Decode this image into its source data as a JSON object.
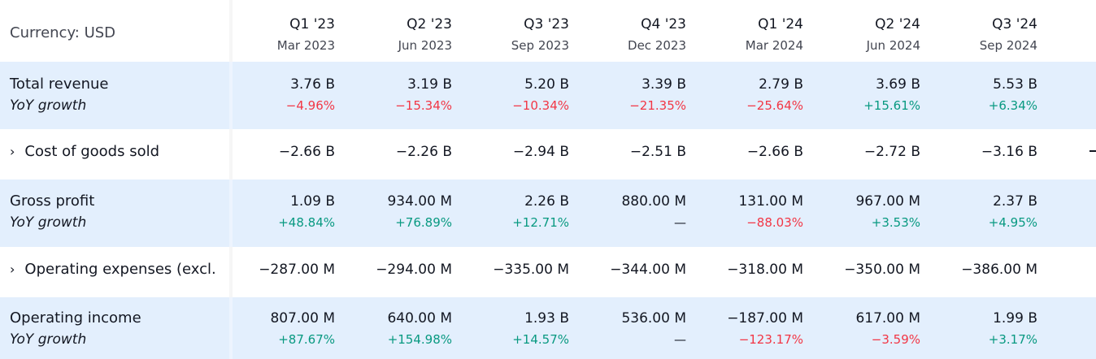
{
  "header": {
    "currency_label": "Currency: USD",
    "periods": [
      {
        "quarter": "Q1 '23",
        "date": "Mar 2023"
      },
      {
        "quarter": "Q2 '23",
        "date": "Jun 2023"
      },
      {
        "quarter": "Q3 '23",
        "date": "Sep 2023"
      },
      {
        "quarter": "Q4 '23",
        "date": "Dec 2023"
      },
      {
        "quarter": "Q1 '24",
        "date": "Mar 2024"
      },
      {
        "quarter": "Q2 '24",
        "date": "Jun 2024"
      },
      {
        "quarter": "Q3 '24",
        "date": "Sep 2024"
      }
    ]
  },
  "rows": {
    "total_revenue": {
      "label": "Total revenue",
      "sub_label": "YoY growth",
      "values": [
        "3.76 B",
        "3.19 B",
        "5.20 B",
        "3.39 B",
        "2.79 B",
        "3.69 B",
        "5.53 B"
      ],
      "growth": [
        "−4.96%",
        "−15.34%",
        "−10.34%",
        "−21.35%",
        "−25.64%",
        "+15.61%",
        "+6.34%"
      ]
    },
    "cost_of_goods_sold": {
      "expand_glyph": "›",
      "label": "Cost of goods sold",
      "values": [
        "−2.66 B",
        "−2.26 B",
        "−2.94 B",
        "−2.51 B",
        "−2.66 B",
        "−2.72 B",
        "−3.16 B"
      ]
    },
    "gross_profit": {
      "label": "Gross profit",
      "sub_label": "YoY growth",
      "values": [
        "1.09 B",
        "934.00 M",
        "2.26 B",
        "880.00 M",
        "131.00 M",
        "967.00 M",
        "2.37 B"
      ],
      "growth": [
        "+48.84%",
        "+76.89%",
        "+12.71%",
        "—",
        "−88.03%",
        "+3.53%",
        "+4.95%"
      ]
    },
    "operating_expenses": {
      "expand_glyph": "›",
      "label": "Operating expenses (excl.",
      "values": [
        "−287.00 M",
        "−294.00 M",
        "−335.00 M",
        "−344.00 M",
        "−318.00 M",
        "−350.00 M",
        "−386.00 M"
      ]
    },
    "operating_income": {
      "label": "Operating income",
      "sub_label": "YoY growth",
      "values": [
        "807.00 M",
        "640.00 M",
        "1.93 B",
        "536.00 M",
        "−187.00 M",
        "617.00 M",
        "1.99 B"
      ],
      "growth": [
        "+87.67%",
        "+154.98%",
        "+14.57%",
        "—",
        "−123.17%",
        "−3.59%",
        "+3.17%"
      ]
    }
  },
  "colors": {
    "highlight_row": "#e3effd",
    "negative": "#f23645",
    "positive": "#089981",
    "text": "#131722"
  }
}
